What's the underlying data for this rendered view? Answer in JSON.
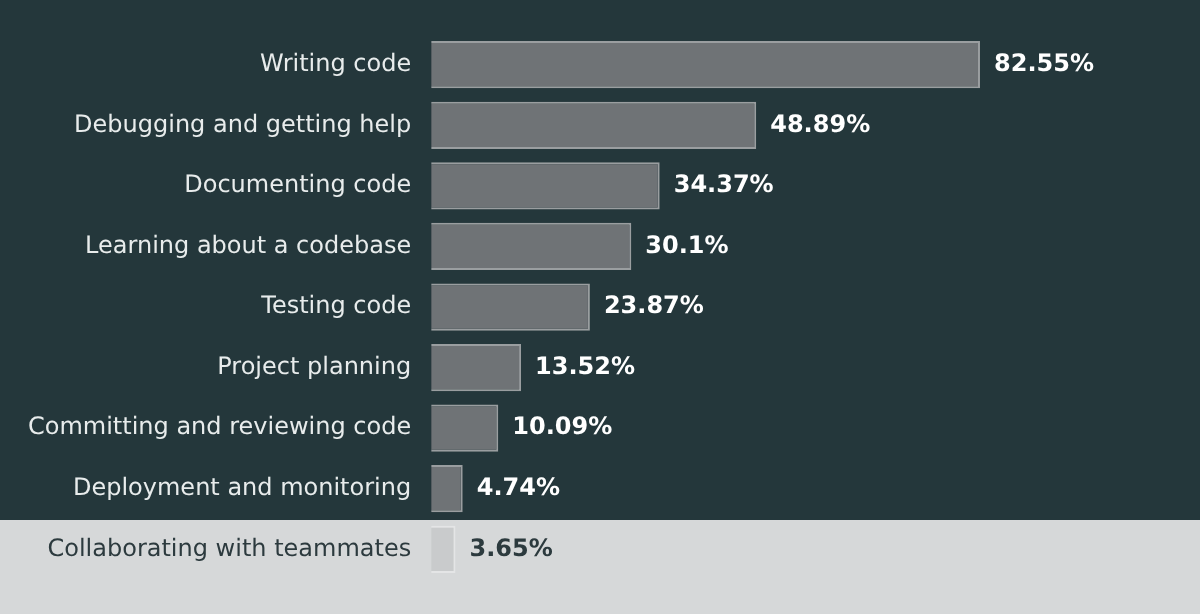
{
  "chart_data": {
    "type": "bar",
    "orientation": "horizontal",
    "categories": [
      "Writing code",
      "Debugging and getting help",
      "Documenting code",
      "Learning about a codebase",
      "Testing code",
      "Project planning",
      "Committing and reviewing code",
      "Deployment and monitoring",
      "Collaborating with teammates"
    ],
    "values": [
      82.55,
      48.89,
      34.37,
      30.1,
      23.87,
      13.52,
      10.09,
      4.74,
      3.65
    ],
    "value_labels": [
      "82.55%",
      "48.89%",
      "34.37%",
      "30.1%",
      "23.87%",
      "13.52%",
      "10.09%",
      "4.74%",
      "3.65%"
    ],
    "colors": [
      "#6f7376",
      "#6f7376",
      "#6f7376",
      "#6f7376",
      "#6f7376",
      "#6f7376",
      "#6f7376",
      "#6f7376",
      "#c9cbcc"
    ],
    "grid": false,
    "legend": false
  }
}
